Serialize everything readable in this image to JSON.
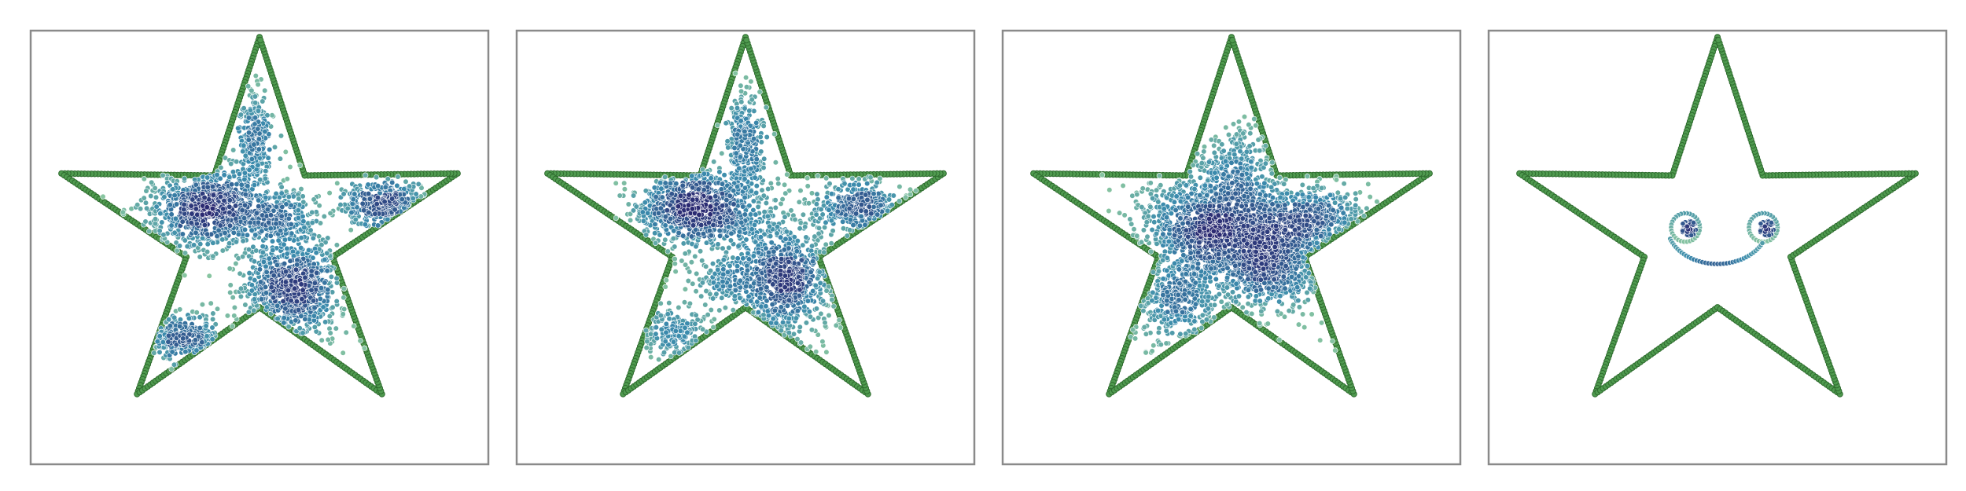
{
  "figure": {
    "layout": "1x4",
    "panels": 4
  },
  "chart_data": [
    {
      "type": "scatter",
      "panel": "panel-1",
      "shape": "star",
      "xlim": [
        0,
        1
      ],
      "ylim": [
        0,
        1
      ],
      "grid": false,
      "axes_ticks": false,
      "colors": {
        "outline_fill": "#4f9a4f",
        "outline_edge": "#2e6b2e",
        "density_low": "#8cc8a0",
        "density_mid": "#3b8bad",
        "density_high": "#2b2a72"
      },
      "clusters": [
        {
          "center": [
            0.39,
            0.59
          ],
          "spread": [
            0.07,
            0.045
          ],
          "count": 900
        },
        {
          "center": [
            0.57,
            0.41
          ],
          "spread": [
            0.055,
            0.06
          ],
          "count": 800
        },
        {
          "center": [
            0.78,
            0.6
          ],
          "spread": [
            0.05,
            0.025
          ],
          "count": 350
        },
        {
          "center": [
            0.49,
            0.76
          ],
          "spread": [
            0.018,
            0.06
          ],
          "count": 250
        },
        {
          "center": [
            0.33,
            0.29
          ],
          "spread": [
            0.05,
            0.025
          ],
          "count": 260
        },
        {
          "center": [
            0.55,
            0.57
          ],
          "spread": [
            0.04,
            0.03
          ],
          "count": 200
        }
      ]
    },
    {
      "type": "scatter",
      "panel": "panel-2",
      "shape": "star",
      "xlim": [
        0,
        1
      ],
      "ylim": [
        0,
        1
      ],
      "grid": false,
      "axes_ticks": false,
      "colors": {
        "outline_fill": "#4f9a4f",
        "outline_edge": "#2e6b2e",
        "density_low": "#8cc8a0",
        "density_mid": "#3b8bad",
        "density_high": "#2b2a72"
      },
      "clusters": [
        {
          "center": [
            0.39,
            0.59
          ],
          "spread": [
            0.07,
            0.045
          ],
          "count": 900
        },
        {
          "center": [
            0.58,
            0.43
          ],
          "spread": [
            0.055,
            0.07
          ],
          "count": 850
        },
        {
          "center": [
            0.75,
            0.59
          ],
          "spread": [
            0.05,
            0.03
          ],
          "count": 330
        },
        {
          "center": [
            0.5,
            0.74
          ],
          "spread": [
            0.02,
            0.07
          ],
          "count": 280
        },
        {
          "center": [
            0.34,
            0.3
          ],
          "spread": [
            0.04,
            0.03
          ],
          "count": 160
        },
        {
          "center": [
            0.45,
            0.43
          ],
          "spread": [
            0.03,
            0.03
          ],
          "count": 120
        }
      ]
    },
    {
      "type": "scatter",
      "panel": "panel-3",
      "shape": "star",
      "xlim": [
        0,
        1
      ],
      "ylim": [
        0,
        1
      ],
      "grid": false,
      "axes_ticks": false,
      "colors": {
        "outline_fill": "#4f9a4f",
        "outline_edge": "#2e6b2e",
        "density_low": "#8cc8a0",
        "density_mid": "#3b8bad",
        "density_high": "#2b2a72"
      },
      "clusters": [
        {
          "center": [
            0.45,
            0.55
          ],
          "spread": [
            0.08,
            0.06
          ],
          "count": 1100
        },
        {
          "center": [
            0.58,
            0.47
          ],
          "spread": [
            0.06,
            0.06
          ],
          "count": 800
        },
        {
          "center": [
            0.67,
            0.57
          ],
          "spread": [
            0.06,
            0.035
          ],
          "count": 450
        },
        {
          "center": [
            0.38,
            0.37
          ],
          "spread": [
            0.05,
            0.05
          ],
          "count": 350
        },
        {
          "center": [
            0.52,
            0.68
          ],
          "spread": [
            0.04,
            0.05
          ],
          "count": 250
        }
      ]
    },
    {
      "type": "scatter",
      "panel": "panel-4",
      "shape": "star",
      "xlim": [
        0,
        1
      ],
      "ylim": [
        0,
        1
      ],
      "grid": false,
      "axes_ticks": false,
      "colors": {
        "outline_fill": "#4f9a4f",
        "outline_edge": "#2e6b2e",
        "density_low": "#8cc8a0",
        "density_mid": "#3b8bad",
        "density_high": "#2b2a72"
      },
      "smiley": {
        "eyes": [
          {
            "ring_center": [
              0.43,
              0.546
            ],
            "ring_radius": 0.033,
            "pupil_center": [
              0.437,
              0.544
            ],
            "pupil_radius": 0.018
          },
          {
            "ring_center": [
              0.6,
              0.546
            ],
            "ring_radius": 0.033,
            "pupil_center": [
              0.607,
              0.544
            ],
            "pupil_radius": 0.018
          }
        ],
        "mouth": {
          "center": [
            0.5,
            0.55
          ],
          "radius": 0.11,
          "start_deg": 200,
          "end_deg": 335
        }
      }
    }
  ]
}
